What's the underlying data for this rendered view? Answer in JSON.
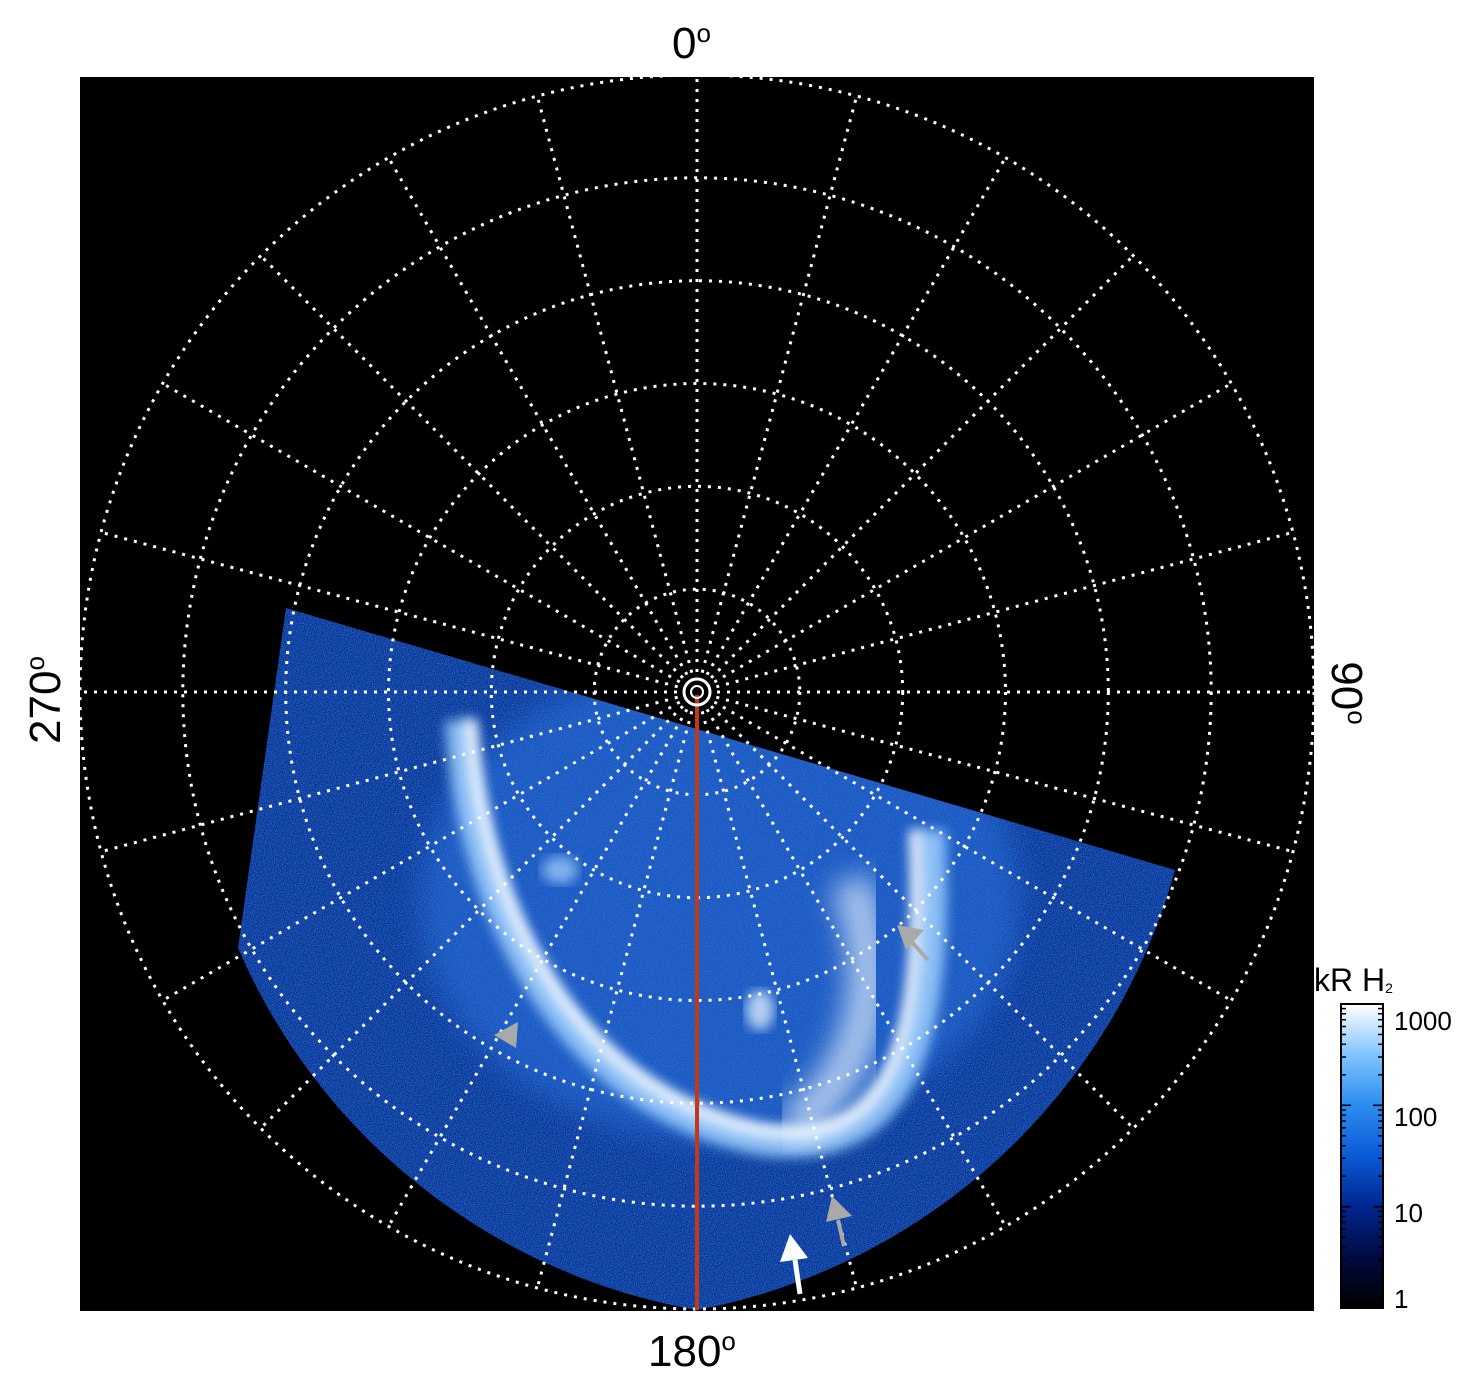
{
  "projection": {
    "labels": {
      "top": "0",
      "right": "90",
      "bottom": "180",
      "left": "270",
      "degree_symbol": "o"
    },
    "grid": {
      "latitude_rings": 6,
      "longitude_spokes": 24,
      "style": "dotted"
    },
    "colors": {
      "background": "#000000",
      "grid": "#ffffff",
      "meridian_line": "#c0391b",
      "arrow_white": "#ffffff",
      "arrow_grey": "#a9a9a9"
    }
  },
  "colorbar": {
    "title": "kR H",
    "title_subscript": "2",
    "ticks": [
      "1000",
      "100",
      "10",
      "1"
    ],
    "colors": [
      "#000000",
      "#000a40",
      "#00258f",
      "#0a5ad6",
      "#2b8cf0",
      "#80c4ff",
      "#ffffff"
    ]
  }
}
